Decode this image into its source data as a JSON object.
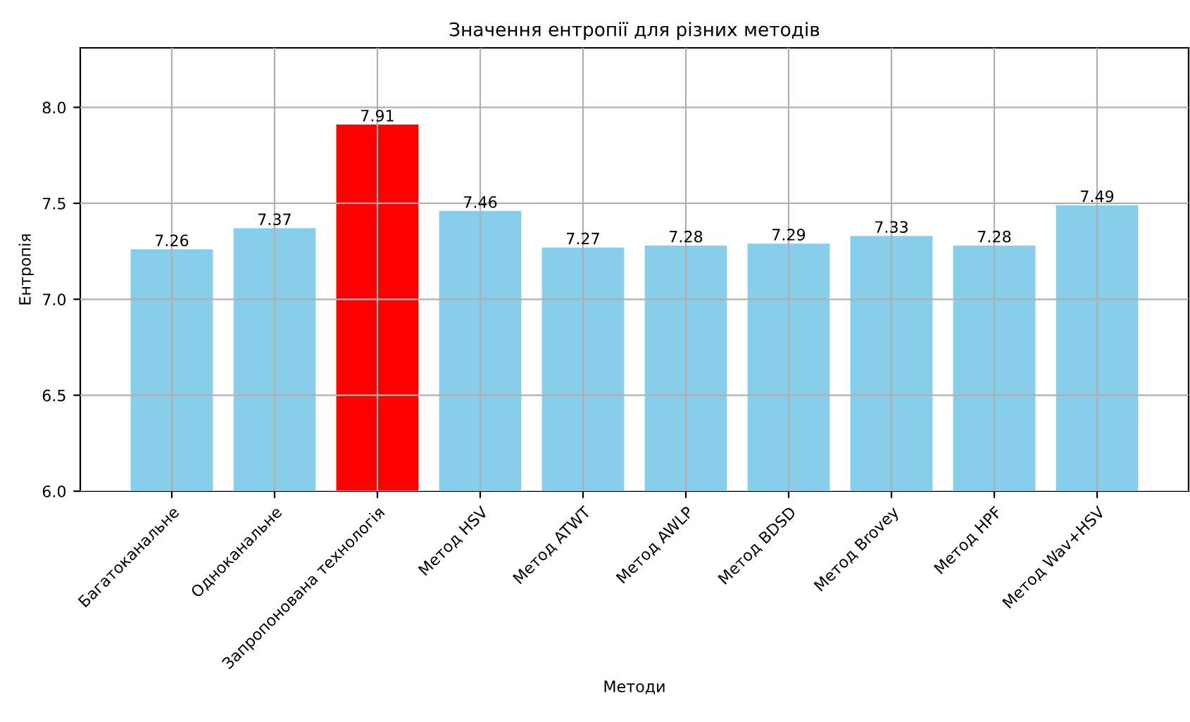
{
  "chart_data": {
    "type": "bar",
    "title": "Значення ентропії для різних методів",
    "xlabel": "Методи",
    "ylabel": "Ентропія",
    "categories": [
      "Багатоканальне",
      "Одноканальне",
      "Запропонована технологія",
      "Метод HSV",
      "Метод ATWT",
      "Метод AWLP",
      "Метод BDSD",
      "Метод Brovey",
      "Метод HPF",
      "Метод Wav+HSV"
    ],
    "values": [
      7.26,
      7.37,
      7.91,
      7.46,
      7.27,
      7.28,
      7.29,
      7.33,
      7.28,
      7.49
    ],
    "colors": [
      "#87ceeb",
      "#87ceeb",
      "#ff0000",
      "#87ceeb",
      "#87ceeb",
      "#87ceeb",
      "#87ceeb",
      "#87ceeb",
      "#87ceeb",
      "#87ceeb"
    ],
    "ylim": [
      6.0,
      8.31
    ],
    "yticks": [
      {
        "value": 6.0,
        "label": "6.0"
      },
      {
        "value": 6.5,
        "label": "6.5"
      },
      {
        "value": 7.0,
        "label": "7.0"
      },
      {
        "value": 7.5,
        "label": "7.5"
      },
      {
        "value": 8.0,
        "label": "8.0"
      }
    ],
    "grid": true,
    "data_labels": true
  }
}
